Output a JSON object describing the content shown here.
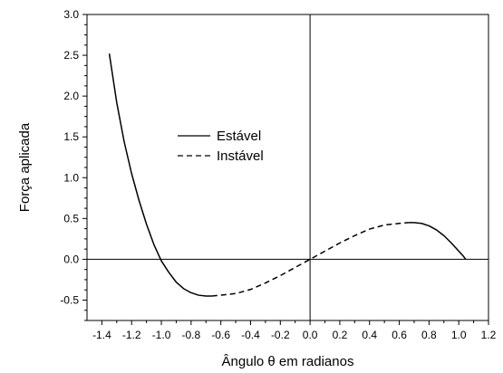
{
  "chart_data": {
    "type": "line",
    "xlabel": "Ângulo θ em radianos",
    "ylabel": "Força aplicada",
    "xlim": [
      -1.5,
      1.2
    ],
    "ylim": [
      -0.75,
      3.0
    ],
    "xticks": [
      -1.4,
      -1.2,
      -1.0,
      -0.8,
      -0.6,
      -0.4,
      -0.2,
      0.0,
      0.2,
      0.4,
      0.6,
      0.8,
      1.0,
      1.2
    ],
    "xtick_labels": [
      "-1.4",
      "-1.2",
      "-1.0",
      "-0.8",
      "-0.6",
      "-0.4",
      "-0.2",
      "0.0",
      "0.2",
      "0.4",
      "0.6",
      "0.8",
      "1.0",
      "1.2"
    ],
    "yticks": [
      -0.5,
      0.0,
      0.5,
      1.0,
      1.5,
      2.0,
      2.5,
      3.0
    ],
    "ytick_labels": [
      "-0.5",
      "0.0",
      "0.5",
      "1.0",
      "1.5",
      "2.0",
      "2.5",
      "3.0"
    ],
    "grid": false,
    "legend_position": "center-left",
    "series": [
      {
        "name": "Estável",
        "style": "solid",
        "x": [
          -1.35,
          -1.3,
          -1.25,
          -1.2,
          -1.15,
          -1.1,
          -1.05,
          -1.0,
          -0.95,
          -0.9,
          -0.85,
          -0.8,
          -0.75,
          -0.7,
          -0.66
        ],
        "y": [
          2.52,
          1.92,
          1.44,
          1.05,
          0.72,
          0.43,
          0.18,
          -0.02,
          -0.16,
          -0.28,
          -0.36,
          -0.41,
          -0.44,
          -0.45,
          -0.45
        ]
      },
      {
        "name": "Instável",
        "style": "dashed",
        "x": [
          -0.66,
          -0.6,
          -0.5,
          -0.4,
          -0.3,
          -0.2,
          -0.1,
          0.0,
          0.1,
          0.2,
          0.3,
          0.4,
          0.5,
          0.6,
          0.66
        ],
        "y": [
          -0.45,
          -0.44,
          -0.42,
          -0.37,
          -0.29,
          -0.2,
          -0.1,
          0.0,
          0.1,
          0.2,
          0.29,
          0.37,
          0.42,
          0.44,
          0.45
        ]
      },
      {
        "name": "Estável",
        "style": "solid",
        "x": [
          0.66,
          0.7,
          0.75,
          0.8,
          0.85,
          0.9,
          0.95,
          1.0,
          1.03,
          1.047
        ],
        "y": [
          0.45,
          0.45,
          0.44,
          0.41,
          0.36,
          0.29,
          0.2,
          0.1,
          0.04,
          0.0
        ]
      }
    ],
    "legend": [
      {
        "label": "Estável",
        "style": "solid"
      },
      {
        "label": "Instável",
        "style": "dashed"
      }
    ]
  }
}
